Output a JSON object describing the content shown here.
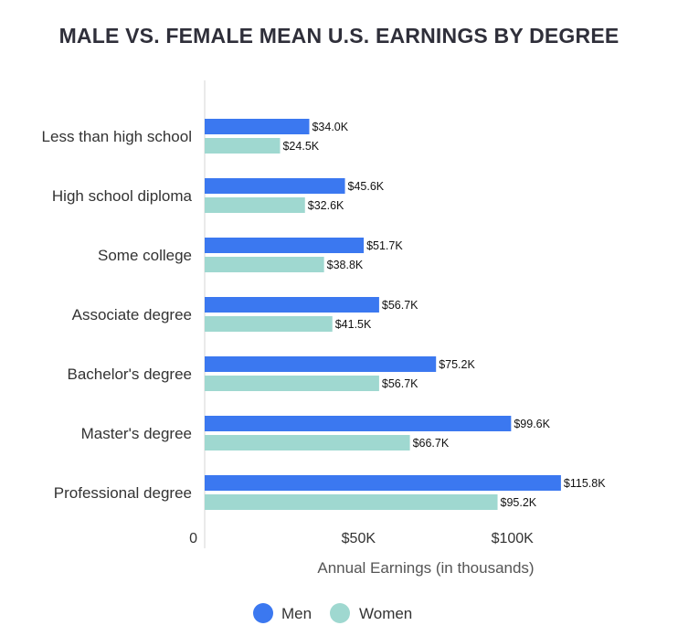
{
  "chart_data": {
    "type": "bar",
    "orientation": "horizontal",
    "title": "MALE VS. FEMALE MEAN U.S. EARNINGS BY DEGREE",
    "xlabel": "Annual Earnings (in thousands)",
    "ylabel": "",
    "categories": [
      "Less than high school",
      "High school diploma",
      "Some college",
      "Associate degree",
      "Bachelor's degree",
      "Master's degree",
      "Professional degree"
    ],
    "series": [
      {
        "name": "Men",
        "color": "#3b78f0",
        "values": [
          34.0,
          45.6,
          51.7,
          56.7,
          75.2,
          99.6,
          115.8
        ],
        "labels": [
          "$34.0K",
          "$45.6K",
          "$51.7K",
          "$56.7K",
          "$75.2K",
          "$99.6K",
          "$115.8K"
        ]
      },
      {
        "name": "Women",
        "color": "#9fd8d0",
        "values": [
          24.5,
          32.6,
          38.8,
          41.5,
          56.7,
          66.7,
          95.2
        ],
        "labels": [
          "$24.5K",
          "$32.6K",
          "$38.8K",
          "$41.5K",
          "$56.7K",
          "$66.7K",
          "$95.2K"
        ]
      }
    ],
    "xlim": [
      0,
      130
    ],
    "x_ticks": [
      {
        "value": 0,
        "label": "0"
      },
      {
        "value": 50,
        "label": "$50K"
      },
      {
        "value": 100,
        "label": "$100K"
      }
    ],
    "grid": false,
    "legend": "bottom"
  }
}
